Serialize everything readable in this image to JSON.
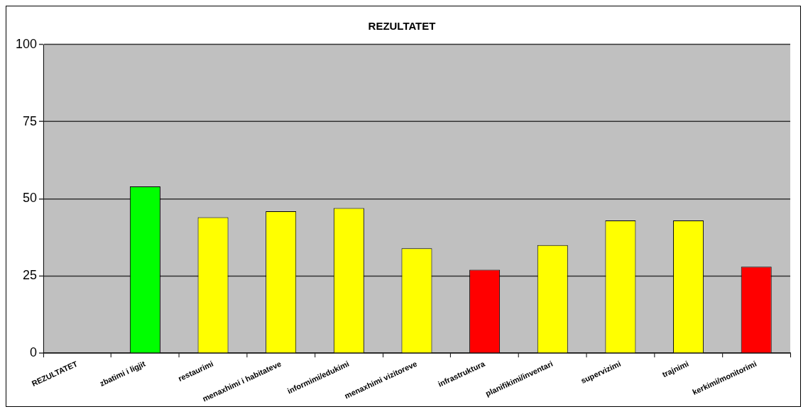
{
  "chart_data": {
    "type": "bar",
    "title": "REZULTATET",
    "categories": [
      "REZULTATET",
      "zbatimi i ligjit",
      "restaurimi",
      "menaxhimi i habitateve",
      "informimi/edukimi",
      "menaxhimi vizitoreve",
      "infrastruktura",
      "planifikimi/inventari",
      "supervizimi",
      "trajnimi",
      "kerkimi/monitorimi"
    ],
    "values": [
      null,
      54,
      44,
      46,
      47,
      34,
      27,
      35,
      43,
      43,
      28
    ],
    "colors": [
      "#c0c0c0",
      "#00ff00",
      "#ffff00",
      "#ffff00",
      "#ffff00",
      "#ffff00",
      "#ff0000",
      "#ffff00",
      "#ffff00",
      "#ffff00",
      "#ff0000"
    ],
    "ylim": [
      0,
      100
    ],
    "yticks": [
      0,
      25,
      50,
      75,
      100
    ],
    "grid": "y",
    "legend": false
  }
}
